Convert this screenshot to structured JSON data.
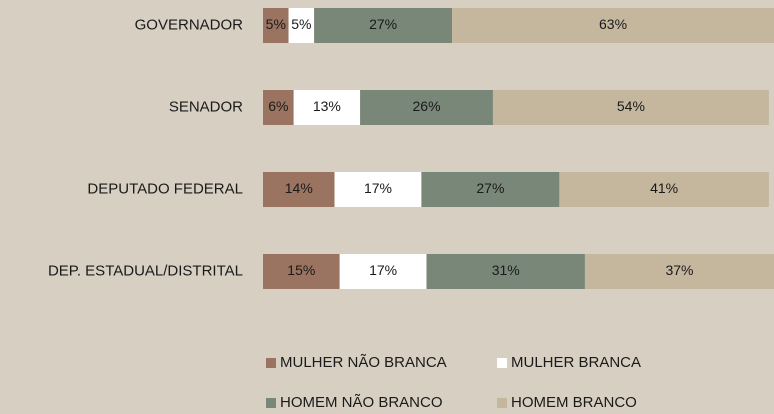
{
  "chart_data": {
    "type": "stacked-bar-horizontal",
    "categories": [
      "GOVERNADOR",
      "SENADOR",
      "DEPUTADO FEDERAL",
      "DEP. ESTADUAL/DISTRITAL"
    ],
    "series": [
      {
        "name": "MULHER NÃO BRANCA",
        "color": "#9a7461",
        "values": [
          5,
          6,
          14,
          15
        ],
        "value_labels": [
          "5%",
          "6%",
          "14%",
          "15%"
        ]
      },
      {
        "name": "MULHER BRANCA",
        "color": "#ffffff",
        "values": [
          5,
          13,
          17,
          17
        ],
        "value_labels": [
          "5%",
          "13%",
          "17%",
          "17%"
        ]
      },
      {
        "name": "HOMEM NÃO BRANCO",
        "color": "#798779",
        "values": [
          27,
          26,
          27,
          31
        ],
        "value_labels": [
          "27%",
          "26%",
          "27%",
          "31%"
        ]
      },
      {
        "name": "HOMEM BRANCO",
        "color": "#c4b79e",
        "values": [
          63,
          54,
          41,
          37
        ],
        "value_labels": [
          "63%",
          "54%",
          "41%",
          "37%"
        ]
      }
    ],
    "xlim": [
      0,
      100
    ]
  }
}
